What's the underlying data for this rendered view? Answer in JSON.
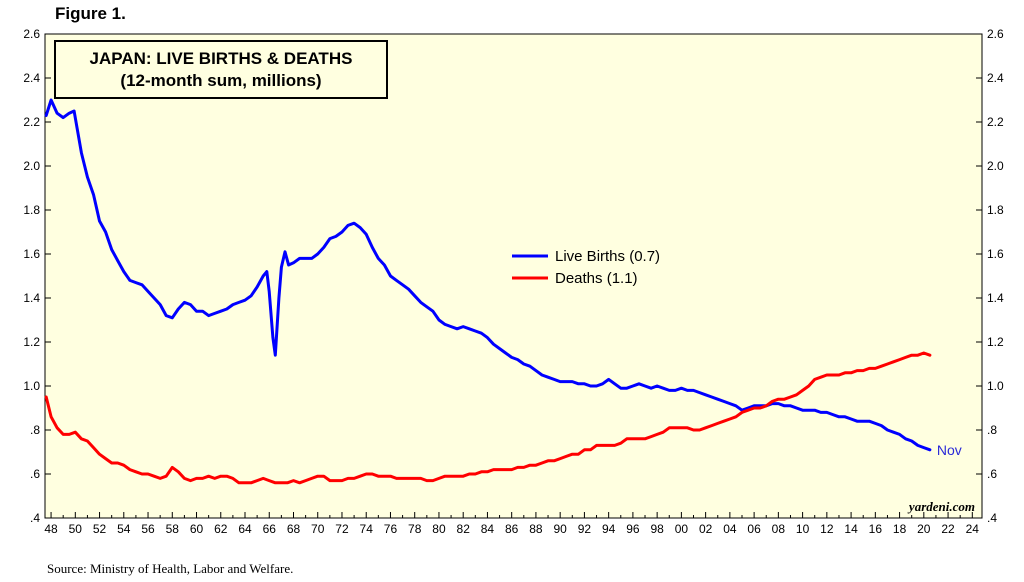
{
  "figure_label": "Figure 1.",
  "source": "Source: Ministry of Health, Labor and Welfare.",
  "credit": "yardeni.com",
  "colors": {
    "background": "#ffffe0",
    "births": "#0000ff",
    "deaths": "#ff0000"
  },
  "chart_data": {
    "type": "line",
    "title": "JAPAN: LIVE BIRTHS & DEATHS",
    "subtitle": "(12-month sum, millions)",
    "xlim": [
      1947.5,
      2024.8
    ],
    "ylim": [
      0.4,
      2.6
    ],
    "y_ticks": [
      0.4,
      0.6,
      0.8,
      1.0,
      1.2,
      1.4,
      1.6,
      1.8,
      2.0,
      2.2,
      2.4,
      2.6
    ],
    "y_tick_labels": [
      ".4",
      ".6",
      ".8",
      "1.0",
      "1.2",
      "1.4",
      "1.6",
      "1.8",
      "2.0",
      "2.2",
      "2.4",
      "2.6"
    ],
    "x_tick_labels": [
      "48",
      "50",
      "52",
      "54",
      "56",
      "58",
      "60",
      "62",
      "64",
      "66",
      "68",
      "70",
      "72",
      "74",
      "76",
      "78",
      "80",
      "82",
      "84",
      "86",
      "88",
      "90",
      "92",
      "94",
      "96",
      "98",
      "00",
      "02",
      "04",
      "06",
      "08",
      "10",
      "12",
      "14",
      "16",
      "18",
      "20",
      "22",
      "24"
    ],
    "legend_position": "center",
    "end_label": "Nov",
    "series": [
      {
        "name": "Live Births (0.7)",
        "color": "#0000ff",
        "x": [
          1947.6,
          1948.0,
          1948.5,
          1949.0,
          1949.5,
          1949.9,
          1950.5,
          1951.0,
          1951.5,
          1952.0,
          1952.5,
          1953.0,
          1953.5,
          1954.0,
          1954.5,
          1955.0,
          1955.5,
          1956.0,
          1956.5,
          1957.0,
          1957.5,
          1958.0,
          1958.5,
          1959.0,
          1959.5,
          1960.0,
          1960.5,
          1961.0,
          1961.5,
          1962.0,
          1962.5,
          1963.0,
          1963.5,
          1964.0,
          1964.5,
          1965.0,
          1965.5,
          1965.8,
          1966.0,
          1966.3,
          1966.5,
          1966.8,
          1967.0,
          1967.3,
          1967.6,
          1968.0,
          1968.5,
          1969.0,
          1969.5,
          1970.0,
          1970.5,
          1971.0,
          1971.5,
          1972.0,
          1972.5,
          1973.0,
          1973.5,
          1974.0,
          1974.5,
          1975.0,
          1975.5,
          1976.0,
          1976.5,
          1977.0,
          1977.5,
          1978.0,
          1978.5,
          1979.0,
          1979.5,
          1980.0,
          1980.5,
          1981.0,
          1981.5,
          1982.0,
          1982.5,
          1983.0,
          1983.5,
          1984.0,
          1984.5,
          1985.0,
          1985.5,
          1986.0,
          1986.5,
          1987.0,
          1987.5,
          1988.0,
          1988.5,
          1989.0,
          1989.5,
          1990.0,
          1990.5,
          1991.0,
          1991.5,
          1992.0,
          1992.5,
          1993.0,
          1993.5,
          1994.0,
          1994.5,
          1995.0,
          1995.5,
          1996.0,
          1996.5,
          1997.0,
          1997.5,
          1998.0,
          1998.5,
          1999.0,
          1999.5,
          2000.0,
          2000.5,
          2001.0,
          2001.5,
          2002.0,
          2002.5,
          2003.0,
          2003.5,
          2004.0,
          2004.5,
          2005.0,
          2005.5,
          2006.0,
          2006.5,
          2007.0,
          2007.5,
          2008.0,
          2008.5,
          2009.0,
          2009.5,
          2010.0,
          2010.5,
          2011.0,
          2011.5,
          2012.0,
          2012.5,
          2013.0,
          2013.5,
          2014.0,
          2014.5,
          2015.0,
          2015.5,
          2016.0,
          2016.5,
          2017.0,
          2017.5,
          2018.0,
          2018.5,
          2019.0,
          2019.5,
          2020.0,
          2020.5
        ],
        "values": [
          2.23,
          2.3,
          2.24,
          2.22,
          2.24,
          2.25,
          2.06,
          1.95,
          1.87,
          1.75,
          1.7,
          1.62,
          1.57,
          1.52,
          1.48,
          1.47,
          1.46,
          1.43,
          1.4,
          1.37,
          1.32,
          1.31,
          1.35,
          1.38,
          1.37,
          1.34,
          1.34,
          1.32,
          1.33,
          1.34,
          1.35,
          1.37,
          1.38,
          1.39,
          1.41,
          1.45,
          1.5,
          1.52,
          1.43,
          1.22,
          1.14,
          1.4,
          1.54,
          1.61,
          1.55,
          1.56,
          1.58,
          1.58,
          1.58,
          1.6,
          1.63,
          1.67,
          1.68,
          1.7,
          1.73,
          1.74,
          1.72,
          1.69,
          1.63,
          1.58,
          1.55,
          1.5,
          1.48,
          1.46,
          1.44,
          1.41,
          1.38,
          1.36,
          1.34,
          1.3,
          1.28,
          1.27,
          1.26,
          1.27,
          1.26,
          1.25,
          1.24,
          1.22,
          1.19,
          1.17,
          1.15,
          1.13,
          1.12,
          1.1,
          1.09,
          1.07,
          1.05,
          1.04,
          1.03,
          1.02,
          1.02,
          1.02,
          1.01,
          1.01,
          1.0,
          1.0,
          1.01,
          1.03,
          1.01,
          0.99,
          0.99,
          1.0,
          1.01,
          1.0,
          0.99,
          1.0,
          0.99,
          0.98,
          0.98,
          0.99,
          0.98,
          0.98,
          0.97,
          0.96,
          0.95,
          0.94,
          0.93,
          0.92,
          0.91,
          0.89,
          0.9,
          0.91,
          0.91,
          0.91,
          0.92,
          0.92,
          0.91,
          0.91,
          0.9,
          0.89,
          0.89,
          0.89,
          0.88,
          0.88,
          0.87,
          0.86,
          0.86,
          0.85,
          0.84,
          0.84,
          0.84,
          0.83,
          0.82,
          0.8,
          0.79,
          0.78,
          0.76,
          0.75,
          0.73,
          0.72,
          0.71
        ]
      },
      {
        "name": "Deaths (1.1)",
        "color": "#ff0000",
        "x": [
          1947.6,
          1948.0,
          1948.5,
          1949.0,
          1949.5,
          1950.0,
          1950.5,
          1951.0,
          1951.5,
          1952.0,
          1952.5,
          1953.0,
          1953.5,
          1954.0,
          1954.5,
          1955.0,
          1955.5,
          1956.0,
          1956.5,
          1957.0,
          1957.5,
          1958.0,
          1958.5,
          1959.0,
          1959.5,
          1960.0,
          1960.5,
          1961.0,
          1961.5,
          1962.0,
          1962.5,
          1963.0,
          1963.5,
          1964.0,
          1964.5,
          1965.0,
          1965.5,
          1966.0,
          1966.5,
          1967.0,
          1967.5,
          1968.0,
          1968.5,
          1969.0,
          1969.5,
          1970.0,
          1970.5,
          1971.0,
          1971.5,
          1972.0,
          1972.5,
          1973.0,
          1973.5,
          1974.0,
          1974.5,
          1975.0,
          1975.5,
          1976.0,
          1976.5,
          1977.0,
          1977.5,
          1978.0,
          1978.5,
          1979.0,
          1979.5,
          1980.0,
          1980.5,
          1981.0,
          1981.5,
          1982.0,
          1982.5,
          1983.0,
          1983.5,
          1984.0,
          1984.5,
          1985.0,
          1985.5,
          1986.0,
          1986.5,
          1987.0,
          1987.5,
          1988.0,
          1988.5,
          1989.0,
          1989.5,
          1990.0,
          1990.5,
          1991.0,
          1991.5,
          1992.0,
          1992.5,
          1993.0,
          1993.5,
          1994.0,
          1994.5,
          1995.0,
          1995.5,
          1996.0,
          1996.5,
          1997.0,
          1997.5,
          1998.0,
          1998.5,
          1999.0,
          1999.5,
          2000.0,
          2000.5,
          2001.0,
          2001.5,
          2002.0,
          2002.5,
          2003.0,
          2003.5,
          2004.0,
          2004.5,
          2005.0,
          2005.5,
          2006.0,
          2006.5,
          2007.0,
          2007.5,
          2008.0,
          2008.5,
          2009.0,
          2009.5,
          2010.0,
          2010.5,
          2011.0,
          2011.5,
          2012.0,
          2012.5,
          2013.0,
          2013.5,
          2014.0,
          2014.5,
          2015.0,
          2015.5,
          2016.0,
          2016.5,
          2017.0,
          2017.5,
          2018.0,
          2018.5,
          2019.0,
          2019.5,
          2020.0,
          2020.5
        ],
        "values": [
          0.95,
          0.86,
          0.81,
          0.78,
          0.78,
          0.79,
          0.76,
          0.75,
          0.72,
          0.69,
          0.67,
          0.65,
          0.65,
          0.64,
          0.62,
          0.61,
          0.6,
          0.6,
          0.59,
          0.58,
          0.59,
          0.63,
          0.61,
          0.58,
          0.57,
          0.58,
          0.58,
          0.59,
          0.58,
          0.59,
          0.59,
          0.58,
          0.56,
          0.56,
          0.56,
          0.57,
          0.58,
          0.57,
          0.56,
          0.56,
          0.56,
          0.57,
          0.56,
          0.57,
          0.58,
          0.59,
          0.59,
          0.57,
          0.57,
          0.57,
          0.58,
          0.58,
          0.59,
          0.6,
          0.6,
          0.59,
          0.59,
          0.59,
          0.58,
          0.58,
          0.58,
          0.58,
          0.58,
          0.57,
          0.57,
          0.58,
          0.59,
          0.59,
          0.59,
          0.59,
          0.6,
          0.6,
          0.61,
          0.61,
          0.62,
          0.62,
          0.62,
          0.62,
          0.63,
          0.63,
          0.64,
          0.64,
          0.65,
          0.66,
          0.66,
          0.67,
          0.68,
          0.69,
          0.69,
          0.71,
          0.71,
          0.73,
          0.73,
          0.73,
          0.73,
          0.74,
          0.76,
          0.76,
          0.76,
          0.76,
          0.77,
          0.78,
          0.79,
          0.81,
          0.81,
          0.81,
          0.81,
          0.8,
          0.8,
          0.81,
          0.82,
          0.83,
          0.84,
          0.85,
          0.86,
          0.88,
          0.89,
          0.9,
          0.9,
          0.91,
          0.93,
          0.94,
          0.94,
          0.95,
          0.96,
          0.98,
          1.0,
          1.03,
          1.04,
          1.05,
          1.05,
          1.05,
          1.06,
          1.06,
          1.07,
          1.07,
          1.08,
          1.08,
          1.09,
          1.1,
          1.11,
          1.12,
          1.13,
          1.14,
          1.14,
          1.15,
          1.14
        ]
      }
    ]
  }
}
